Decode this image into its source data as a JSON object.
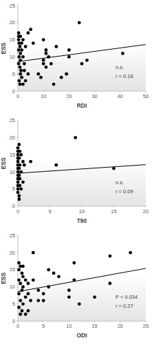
{
  "chart_data": [
    {
      "type": "scatter",
      "x_label": "RDI",
      "y_label": "ESS",
      "color": "#000000",
      "marker": "circle",
      "x": [
        0.3,
        0.3,
        0.3,
        0.3,
        0.3,
        0.5,
        0.5,
        0.5,
        0.8,
        0.8,
        0.8,
        1,
        1,
        1,
        1,
        1.2,
        1.5,
        1.5,
        1.5,
        2,
        2,
        2,
        2.5,
        2.5,
        3,
        3,
        4,
        4,
        5,
        6,
        8,
        9,
        10,
        10,
        10,
        11,
        11,
        11,
        12,
        13,
        14,
        15,
        17,
        19,
        20,
        20,
        24,
        25,
        27,
        41
      ],
      "values": [
        17,
        16,
        15,
        12,
        8,
        14,
        10,
        3,
        13,
        7,
        2,
        16,
        11,
        9,
        5,
        6,
        14,
        12,
        4,
        15,
        10,
        2,
        8,
        6,
        13,
        3,
        5,
        17,
        18,
        14,
        5,
        4,
        15,
        9,
        8,
        12,
        11,
        7,
        10,
        8,
        2,
        13,
        4,
        5,
        10,
        12,
        20,
        8,
        9,
        11
      ],
      "xlim": [
        0,
        50
      ],
      "ylim": [
        0,
        25
      ],
      "xticks": [
        0,
        10,
        20,
        30,
        40,
        50
      ],
      "yticks": [
        0,
        5,
        10,
        15,
        20,
        25
      ],
      "trend_line": {
        "x": [
          0,
          50
        ],
        "y": [
          8.6,
          13.6
        ]
      },
      "annotations": [
        "n.s.",
        "r = 0.18"
      ]
    },
    {
      "type": "scatter",
      "x_label": "T90",
      "y_label": "ESS",
      "color": "#000000",
      "marker": "circle",
      "x": [
        0,
        0,
        0,
        0,
        0,
        0,
        0,
        0,
        0,
        0,
        0,
        0,
        0,
        0,
        0.2,
        0.2,
        0.2,
        0.2,
        0.2,
        0.2,
        0.3,
        0.3,
        0.3,
        0.3,
        0.5,
        0.5,
        0.5,
        0.8,
        0.8,
        1,
        2,
        6,
        9,
        15
      ],
      "values": [
        17,
        16,
        15,
        14,
        13,
        12,
        11,
        10,
        9,
        8,
        7,
        6,
        5,
        4,
        18,
        14,
        11,
        9,
        3,
        2,
        16,
        12,
        8,
        6,
        15,
        10,
        5,
        13,
        7,
        12,
        13,
        12,
        20,
        11
      ],
      "xlim": [
        0,
        20
      ],
      "ylim": [
        0,
        25
      ],
      "xticks": [
        0,
        5,
        10,
        15,
        20
      ],
      "yticks": [
        0,
        5,
        10,
        15,
        20,
        25
      ],
      "trend_line": {
        "x": [
          0,
          20
        ],
        "y": [
          9.6,
          12.1
        ]
      },
      "annotations": [
        "n.s.",
        "r = 0.09"
      ]
    },
    {
      "type": "scatter",
      "x_label": "ODI",
      "y_label": "ESS",
      "color": "#000000",
      "marker": "circle",
      "x": [
        0.2,
        0.2,
        0.2,
        0.2,
        0.2,
        0.5,
        0.5,
        0.5,
        0.5,
        0.8,
        0.8,
        0.8,
        1,
        1,
        1,
        1,
        1.5,
        1.5,
        1.5,
        2,
        2,
        2,
        2.5,
        3,
        3,
        4,
        4,
        5,
        5,
        6,
        6,
        7,
        8,
        10,
        10,
        11,
        11,
        12,
        15,
        18,
        18,
        22
      ],
      "values": [
        17,
        15,
        12,
        8,
        4,
        16,
        11,
        6,
        2,
        14,
        9,
        3,
        16,
        13,
        10,
        5,
        12,
        7,
        2,
        11,
        8,
        3,
        6,
        20,
        12,
        6,
        9,
        6,
        8,
        10,
        15,
        14,
        13,
        9,
        7,
        17,
        12,
        5,
        7,
        11,
        19,
        20
      ],
      "xlim": [
        0,
        25
      ],
      "ylim": [
        0,
        25
      ],
      "xticks": [
        0,
        5,
        10,
        15,
        20,
        25
      ],
      "yticks": [
        0,
        5,
        10,
        15,
        20,
        25
      ],
      "trend_line": {
        "x": [
          0,
          25
        ],
        "y": [
          8.6,
          15.4
        ]
      },
      "annotations": [
        "P = 0.034",
        "r = 0.27"
      ]
    }
  ]
}
